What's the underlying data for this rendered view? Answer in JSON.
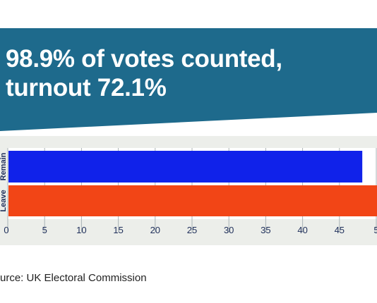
{
  "headline": {
    "text": "98.9% of votes counted, turnout 72.1%",
    "background": "#1e6a8c"
  },
  "source": "urce: UK Electoral Commission",
  "chart_data": {
    "type": "bar",
    "orientation": "horizontal",
    "categories": [
      "Remain",
      "Leave"
    ],
    "values": [
      48.1,
      51.9
    ],
    "colors": [
      "#1022ea",
      "#f24516"
    ],
    "xlim": [
      0,
      50
    ],
    "xticks": [
      "0",
      "5",
      "10",
      "15",
      "20",
      "25",
      "30",
      "35",
      "40",
      "45",
      "5"
    ],
    "grid": true,
    "panel_background": "#eceeea"
  }
}
